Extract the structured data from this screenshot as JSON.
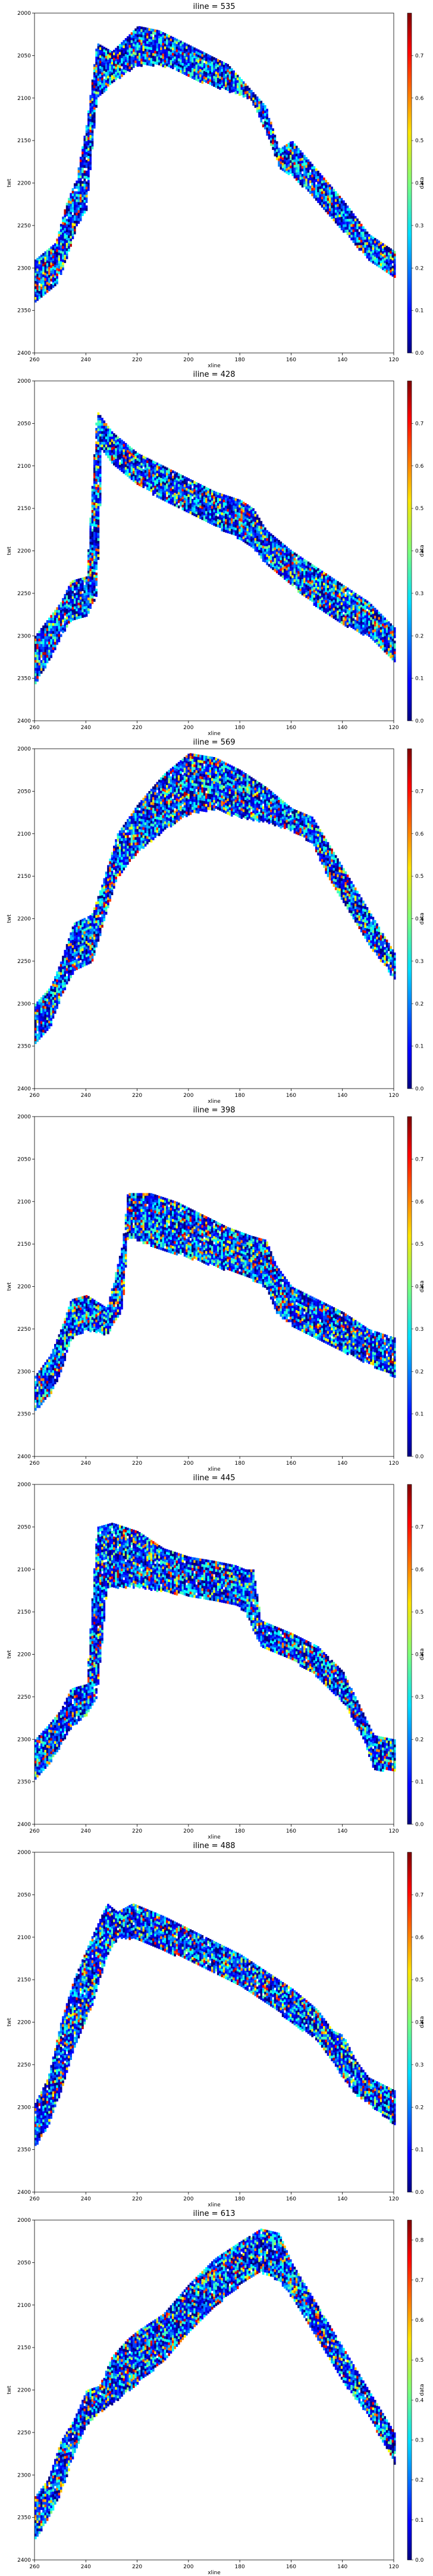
{
  "chart_data": [
    {
      "type": "heatmap",
      "title": "iline = 535",
      "xlabel": "xline",
      "ylabel": "twt",
      "cbar_label": "data",
      "xlim": [
        260,
        120
      ],
      "ylim": [
        2400,
        2000
      ],
      "vmin": 0,
      "vmax": 0.8,
      "x_ticks": [
        "260",
        "240",
        "220",
        "200",
        "180",
        "160",
        "140",
        "120"
      ],
      "y_ticks": [
        "2000",
        "2050",
        "2100",
        "2150",
        "2200",
        "2250",
        "2300",
        "2350",
        "2400"
      ],
      "cbar_ticks": [
        "0.0",
        "0.1",
        "0.2",
        "0.3",
        "0.4",
        "0.5",
        "0.6",
        "0.7"
      ],
      "top": [
        [
          260,
          2290
        ],
        [
          252,
          2270
        ],
        [
          248,
          2225
        ],
        [
          244,
          2195
        ],
        [
          240,
          2130
        ],
        [
          236,
          2035
        ],
        [
          230,
          2045
        ],
        [
          220,
          2015
        ],
        [
          212,
          2020
        ],
        [
          205,
          2030
        ],
        [
          195,
          2045
        ],
        [
          185,
          2060
        ],
        [
          176,
          2090
        ],
        [
          170,
          2110
        ],
        [
          165,
          2160
        ],
        [
          160,
          2150
        ],
        [
          150,
          2185
        ],
        [
          140,
          2220
        ],
        [
          130,
          2260
        ],
        [
          120,
          2280
        ]
      ],
      "bottom": [
        [
          260,
          2340
        ],
        [
          252,
          2320
        ],
        [
          248,
          2290
        ],
        [
          244,
          2250
        ],
        [
          240,
          2230
        ],
        [
          236,
          2100
        ],
        [
          230,
          2080
        ],
        [
          220,
          2060
        ],
        [
          212,
          2060
        ],
        [
          205,
          2065
        ],
        [
          195,
          2080
        ],
        [
          185,
          2090
        ],
        [
          176,
          2100
        ],
        [
          170,
          2140
        ],
        [
          165,
          2180
        ],
        [
          160,
          2190
        ],
        [
          150,
          2220
        ],
        [
          140,
          2255
        ],
        [
          130,
          2290
        ],
        [
          120,
          2310
        ]
      ]
    },
    {
      "type": "heatmap",
      "title": "iline = 428",
      "xlabel": "xline",
      "ylabel": "twt",
      "cbar_label": "data",
      "xlim": [
        260,
        120
      ],
      "ylim": [
        2400,
        2000
      ],
      "vmin": 0,
      "vmax": 0.8,
      "x_ticks": [
        "260",
        "240",
        "220",
        "200",
        "180",
        "160",
        "140",
        "120"
      ],
      "y_ticks": [
        "2000",
        "2050",
        "2100",
        "2150",
        "2200",
        "2250",
        "2300",
        "2350",
        "2400"
      ],
      "cbar_ticks": [
        "0.0",
        "0.1",
        "0.2",
        "0.3",
        "0.4",
        "0.5",
        "0.6",
        "0.7"
      ],
      "top": [
        [
          260,
          2300
        ],
        [
          255,
          2280
        ],
        [
          250,
          2260
        ],
        [
          246,
          2235
        ],
        [
          240,
          2230
        ],
        [
          236,
          2035
        ],
        [
          230,
          2060
        ],
        [
          220,
          2085
        ],
        [
          210,
          2100
        ],
        [
          200,
          2115
        ],
        [
          190,
          2130
        ],
        [
          180,
          2140
        ],
        [
          175,
          2150
        ],
        [
          170,
          2175
        ],
        [
          160,
          2200
        ],
        [
          150,
          2220
        ],
        [
          140,
          2240
        ],
        [
          130,
          2260
        ],
        [
          120,
          2290
        ]
      ],
      "bottom": [
        [
          260,
          2355
        ],
        [
          255,
          2330
        ],
        [
          250,
          2300
        ],
        [
          246,
          2280
        ],
        [
          240,
          2275
        ],
        [
          236,
          2250
        ],
        [
          234,
          2080
        ],
        [
          230,
          2095
        ],
        [
          220,
          2120
        ],
        [
          210,
          2140
        ],
        [
          200,
          2155
        ],
        [
          190,
          2170
        ],
        [
          180,
          2185
        ],
        [
          175,
          2195
        ],
        [
          170,
          2215
        ],
        [
          160,
          2240
        ],
        [
          150,
          2265
        ],
        [
          140,
          2285
        ],
        [
          130,
          2300
        ],
        [
          120,
          2330
        ]
      ]
    },
    {
      "type": "heatmap",
      "title": "iline = 569",
      "xlabel": "xline",
      "ylabel": "twt",
      "cbar_label": "data",
      "xlim": [
        260,
        120
      ],
      "ylim": [
        2400,
        2000
      ],
      "vmin": 0,
      "vmax": 0.8,
      "x_ticks": [
        "260",
        "240",
        "220",
        "200",
        "180",
        "160",
        "140",
        "120"
      ],
      "y_ticks": [
        "2000",
        "2050",
        "2100",
        "2150",
        "2200",
        "2250",
        "2300",
        "2350",
        "2400"
      ],
      "cbar_ticks": [
        "0.0",
        "0.1",
        "0.2",
        "0.3",
        "0.4",
        "0.5",
        "0.6",
        "0.7"
      ],
      "top": [
        [
          260,
          2300
        ],
        [
          254,
          2280
        ],
        [
          250,
          2250
        ],
        [
          245,
          2205
        ],
        [
          238,
          2195
        ],
        [
          234,
          2160
        ],
        [
          228,
          2100
        ],
        [
          220,
          2065
        ],
        [
          210,
          2030
        ],
        [
          200,
          2005
        ],
        [
          190,
          2010
        ],
        [
          180,
          2025
        ],
        [
          170,
          2045
        ],
        [
          160,
          2070
        ],
        [
          152,
          2080
        ],
        [
          146,
          2110
        ],
        [
          138,
          2150
        ],
        [
          130,
          2190
        ],
        [
          120,
          2240
        ]
      ],
      "bottom": [
        [
          260,
          2345
        ],
        [
          254,
          2325
        ],
        [
          250,
          2290
        ],
        [
          245,
          2260
        ],
        [
          238,
          2250
        ],
        [
          234,
          2210
        ],
        [
          228,
          2150
        ],
        [
          220,
          2120
        ],
        [
          210,
          2095
        ],
        [
          200,
          2075
        ],
        [
          190,
          2070
        ],
        [
          180,
          2080
        ],
        [
          170,
          2085
        ],
        [
          160,
          2095
        ],
        [
          152,
          2110
        ],
        [
          146,
          2150
        ],
        [
          138,
          2190
        ],
        [
          130,
          2230
        ],
        [
          120,
          2270
        ]
      ]
    },
    {
      "type": "heatmap",
      "title": "iline = 398",
      "xlabel": "xline",
      "ylabel": "twt",
      "cbar_label": "data",
      "xlim": [
        260,
        120
      ],
      "ylim": [
        2400,
        2000
      ],
      "vmin": 0,
      "vmax": 0.8,
      "x_ticks": [
        "260",
        "240",
        "220",
        "200",
        "180",
        "160",
        "140",
        "120"
      ],
      "y_ticks": [
        "2000",
        "2050",
        "2100",
        "2150",
        "2200",
        "2250",
        "2300",
        "2350",
        "2400"
      ],
      "cbar_ticks": [
        "0.0",
        "0.1",
        "0.2",
        "0.3",
        "0.4",
        "0.5",
        "0.6",
        "0.7"
      ],
      "top": [
        [
          260,
          2305
        ],
        [
          254,
          2280
        ],
        [
          250,
          2250
        ],
        [
          246,
          2215
        ],
        [
          240,
          2210
        ],
        [
          232,
          2225
        ],
        [
          226,
          2150
        ],
        [
          224,
          2090
        ],
        [
          215,
          2090
        ],
        [
          205,
          2100
        ],
        [
          195,
          2115
        ],
        [
          185,
          2130
        ],
        [
          176,
          2140
        ],
        [
          170,
          2145
        ],
        [
          166,
          2175
        ],
        [
          160,
          2200
        ],
        [
          150,
          2215
        ],
        [
          140,
          2230
        ],
        [
          130,
          2250
        ],
        [
          120,
          2260
        ]
      ],
      "bottom": [
        [
          260,
          2345
        ],
        [
          254,
          2325
        ],
        [
          250,
          2300
        ],
        [
          246,
          2260
        ],
        [
          240,
          2250
        ],
        [
          232,
          2255
        ],
        [
          226,
          2225
        ],
        [
          224,
          2140
        ],
        [
          215,
          2150
        ],
        [
          205,
          2160
        ],
        [
          195,
          2170
        ],
        [
          185,
          2180
        ],
        [
          176,
          2190
        ],
        [
          170,
          2200
        ],
        [
          166,
          2230
        ],
        [
          160,
          2245
        ],
        [
          150,
          2260
        ],
        [
          140,
          2275
        ],
        [
          130,
          2290
        ],
        [
          120,
          2305
        ]
      ]
    },
    {
      "type": "heatmap",
      "title": "iline = 445",
      "xlabel": "xline",
      "ylabel": "twt",
      "cbar_label": "data",
      "xlim": [
        260,
        120
      ],
      "ylim": [
        2400,
        2000
      ],
      "vmin": 0,
      "vmax": 0.8,
      "x_ticks": [
        "260",
        "240",
        "220",
        "200",
        "180",
        "160",
        "140",
        "120"
      ],
      "y_ticks": [
        "2000",
        "2050",
        "2100",
        "2150",
        "2200",
        "2250",
        "2300",
        "2350",
        "2400"
      ],
      "cbar_ticks": [
        "0.0",
        "0.1",
        "0.2",
        "0.3",
        "0.4",
        "0.5",
        "0.6",
        "0.7"
      ],
      "top": [
        [
          260,
          2300
        ],
        [
          254,
          2280
        ],
        [
          250,
          2265
        ],
        [
          246,
          2240
        ],
        [
          240,
          2235
        ],
        [
          236,
          2050
        ],
        [
          230,
          2045
        ],
        [
          220,
          2055
        ],
        [
          210,
          2075
        ],
        [
          200,
          2085
        ],
        [
          190,
          2090
        ],
        [
          182,
          2095
        ],
        [
          178,
          2100
        ],
        [
          175,
          2100
        ],
        [
          172,
          2160
        ],
        [
          160,
          2175
        ],
        [
          150,
          2190
        ],
        [
          140,
          2220
        ],
        [
          132,
          2270
        ],
        [
          128,
          2295
        ],
        [
          120,
          2300
        ]
      ],
      "bottom": [
        [
          260,
          2345
        ],
        [
          254,
          2325
        ],
        [
          250,
          2305
        ],
        [
          246,
          2285
        ],
        [
          240,
          2270
        ],
        [
          236,
          2250
        ],
        [
          232,
          2120
        ],
        [
          220,
          2120
        ],
        [
          210,
          2125
        ],
        [
          200,
          2130
        ],
        [
          190,
          2135
        ],
        [
          182,
          2140
        ],
        [
          178,
          2150
        ],
        [
          172,
          2190
        ],
        [
          160,
          2205
        ],
        [
          150,
          2225
        ],
        [
          140,
          2255
        ],
        [
          132,
          2300
        ],
        [
          128,
          2335
        ],
        [
          120,
          2335
        ]
      ]
    },
    {
      "type": "heatmap",
      "title": "iline = 488",
      "xlabel": "xline",
      "ylabel": "twt",
      "cbar_label": "data",
      "xlim": [
        260,
        120
      ],
      "ylim": [
        2400,
        2000
      ],
      "vmin": 0,
      "vmax": 0.8,
      "x_ticks": [
        "260",
        "240",
        "220",
        "200",
        "180",
        "160",
        "140",
        "120"
      ],
      "y_ticks": [
        "2000",
        "2050",
        "2100",
        "2150",
        "2200",
        "2250",
        "2300",
        "2350",
        "2400"
      ],
      "cbar_ticks": [
        "0.0",
        "0.1",
        "0.2",
        "0.3",
        "0.4",
        "0.5",
        "0.6",
        "0.7"
      ],
      "top": [
        [
          260,
          2295
        ],
        [
          255,
          2265
        ],
        [
          250,
          2200
        ],
        [
          245,
          2150
        ],
        [
          238,
          2100
        ],
        [
          232,
          2060
        ],
        [
          228,
          2070
        ],
        [
          222,
          2060
        ],
        [
          218,
          2065
        ],
        [
          210,
          2075
        ],
        [
          200,
          2090
        ],
        [
          190,
          2105
        ],
        [
          180,
          2120
        ],
        [
          170,
          2140
        ],
        [
          160,
          2160
        ],
        [
          150,
          2185
        ],
        [
          144,
          2210
        ],
        [
          140,
          2215
        ],
        [
          135,
          2245
        ],
        [
          130,
          2265
        ],
        [
          120,
          2280
        ]
      ],
      "bottom": [
        [
          260,
          2345
        ],
        [
          255,
          2320
        ],
        [
          250,
          2280
        ],
        [
          245,
          2230
        ],
        [
          238,
          2180
        ],
        [
          232,
          2120
        ],
        [
          228,
          2100
        ],
        [
          222,
          2100
        ],
        [
          218,
          2105
        ],
        [
          210,
          2115
        ],
        [
          200,
          2125
        ],
        [
          190,
          2140
        ],
        [
          180,
          2155
        ],
        [
          170,
          2175
        ],
        [
          160,
          2200
        ],
        [
          150,
          2220
        ],
        [
          144,
          2245
        ],
        [
          140,
          2265
        ],
        [
          135,
          2285
        ],
        [
          130,
          2295
        ],
        [
          120,
          2320
        ]
      ]
    },
    {
      "type": "heatmap",
      "title": "iline = 613",
      "xlabel": "xline",
      "ylabel": "twt",
      "cbar_label": "data",
      "xlim": [
        260,
        120
      ],
      "ylim": [
        2400,
        2000
      ],
      "vmin": 0,
      "vmax": 0.85,
      "x_ticks": [
        "260",
        "240",
        "220",
        "200",
        "180",
        "160",
        "140",
        "120"
      ],
      "y_ticks": [
        "2000",
        "2050",
        "2100",
        "2150",
        "2200",
        "2250",
        "2300",
        "2350",
        "2400"
      ],
      "cbar_ticks": [
        "0.0",
        "0.1",
        "0.2",
        "0.3",
        "0.4",
        "0.5",
        "0.6",
        "0.7",
        "0.8"
      ],
      "top": [
        [
          260,
          2325
        ],
        [
          255,
          2305
        ],
        [
          250,
          2260
        ],
        [
          245,
          2235
        ],
        [
          240,
          2200
        ],
        [
          235,
          2195
        ],
        [
          230,
          2160
        ],
        [
          224,
          2140
        ],
        [
          220,
          2130
        ],
        [
          210,
          2110
        ],
        [
          200,
          2075
        ],
        [
          190,
          2045
        ],
        [
          180,
          2025
        ],
        [
          172,
          2010
        ],
        [
          165,
          2015
        ],
        [
          160,
          2050
        ],
        [
          150,
          2100
        ],
        [
          140,
          2150
        ],
        [
          130,
          2200
        ],
        [
          120,
          2250
        ]
      ],
      "bottom": [
        [
          260,
          2375
        ],
        [
          255,
          2350
        ],
        [
          250,
          2320
        ],
        [
          245,
          2275
        ],
        [
          240,
          2240
        ],
        [
          235,
          2225
        ],
        [
          230,
          2215
        ],
        [
          224,
          2200
        ],
        [
          220,
          2190
        ],
        [
          210,
          2165
        ],
        [
          200,
          2130
        ],
        [
          190,
          2100
        ],
        [
          180,
          2075
        ],
        [
          172,
          2060
        ],
        [
          165,
          2070
        ],
        [
          160,
          2090
        ],
        [
          150,
          2140
        ],
        [
          140,
          2190
        ],
        [
          130,
          2230
        ],
        [
          120,
          2285
        ]
      ]
    }
  ]
}
